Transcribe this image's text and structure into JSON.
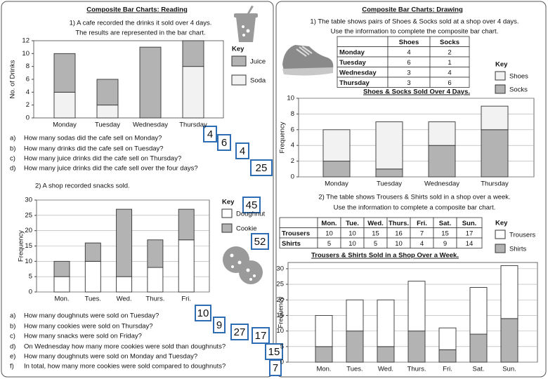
{
  "left": {
    "title": "Composite Bar Charts: Reading",
    "q1": {
      "lines": [
        "1)  A cafe recorded the drinks it sold over 4 days.",
        "The results are represented in the bar chart."
      ],
      "questions": [
        {
          "label": "a)",
          "text": "How many sodas did the cafe sell on Monday?",
          "answer": "4"
        },
        {
          "label": "b)",
          "text": "How many drinks did the cafe sell on Tuesday?",
          "answer": "6"
        },
        {
          "label": "c)",
          "text": "How many juice drinks did the cafe sell on Thursday?",
          "answer": "4"
        },
        {
          "label": "d)",
          "text": "How many juice drinks did the cafe sell over the four days?",
          "answer": "25"
        }
      ]
    },
    "q2": {
      "lines": [
        "2)  A shop recorded snacks sold."
      ],
      "totals": [
        "45",
        "52"
      ],
      "questions": [
        {
          "label": "a)",
          "text": "How many doughnuts were sold on Tuesday?",
          "answer": "10"
        },
        {
          "label": "b)",
          "text": "How many cookies were sold on Thursday?",
          "answer": "9"
        },
        {
          "label": "c)",
          "text": "How many snacks were sold on Friday?",
          "answer": "27"
        },
        {
          "label": "d)",
          "text": "On Wednesday how many more cookies were sold than doughnuts?",
          "answer": "17"
        },
        {
          "label": "e)",
          "text": "How many doughnuts were sold on Monday and Tuesday?",
          "answer": "15"
        },
        {
          "label": "f)",
          "text": "In total, how many more cookies were sold compared to doughnuts?",
          "answer": "7"
        }
      ]
    }
  },
  "right": {
    "title": "Composite Bar Charts: Drawing",
    "q1": {
      "lines": [
        "1) The table shows pairs of Shoes & Socks sold at a shop over 4 days.",
        "Use the information to complete the composite bar chart."
      ],
      "table": {
        "columns": [
          "Shoes",
          "Socks"
        ],
        "rows": [
          {
            "label": "Monday",
            "cells": [
              "4",
              "2"
            ]
          },
          {
            "label": "Tuesday",
            "cells": [
              "6",
              "1"
            ]
          },
          {
            "label": "Wednesday",
            "cells": [
              "3",
              "4"
            ]
          },
          {
            "label": "Thursday",
            "cells": [
              "3",
              "6"
            ]
          }
        ]
      }
    },
    "q2": {
      "lines": [
        "2) The table shows Trousers & Shirts sold in a shop over a week.",
        "Use the information to complete a composite bar chart."
      ],
      "table": {
        "columns": [
          "Mon.",
          "Tue.",
          "Wed.",
          "Thurs.",
          "Fri.",
          "Sat.",
          "Sun."
        ],
        "rows": [
          {
            "label": "Trousers",
            "cells": [
              "10",
              "10",
              "15",
              "16",
              "7",
              "15",
              "17"
            ]
          },
          {
            "label": "Shirts",
            "cells": [
              "5",
              "10",
              "5",
              "10",
              "4",
              "9",
              "14"
            ]
          }
        ]
      }
    }
  },
  "chart_data": [
    {
      "type": "bar",
      "stacked": true,
      "ylabel": "No. of Drinks",
      "legend_title": "Key",
      "grid": false,
      "categories": [
        "Monday",
        "Tuesday",
        "Wednesday",
        "Thursday"
      ],
      "series": [
        {
          "name": "Juice",
          "color": "#b3b3b3",
          "values": [
            6,
            4,
            11,
            4
          ]
        },
        {
          "name": "Soda",
          "color": "#f2f2f2",
          "values": [
            4,
            2,
            0,
            8
          ]
        }
      ],
      "ylim": [
        0,
        12
      ],
      "yticks": [
        0,
        2,
        4,
        6,
        8,
        10,
        12
      ]
    },
    {
      "type": "bar",
      "stacked": true,
      "ylabel": "Frequency",
      "legend_title": "Key",
      "grid": true,
      "categories": [
        "Mon.",
        "Tues.",
        "Wed.",
        "Thurs.",
        "Fri."
      ],
      "series": [
        {
          "name": "Doughnut",
          "color": "#ffffff",
          "values": [
            5,
            10,
            5,
            8,
            17
          ]
        },
        {
          "name": "Cookie",
          "color": "#b3b3b3",
          "values": [
            5,
            6,
            22,
            9,
            10
          ]
        }
      ],
      "ylim": [
        0,
        30
      ],
      "yticks": [
        0,
        5,
        10,
        15,
        20,
        25,
        30
      ]
    },
    {
      "type": "bar",
      "stacked": true,
      "title": "Shoes & Socks Sold Over 4 Days.",
      "ylabel": "Frequency",
      "legend_title": "Key",
      "grid": true,
      "categories": [
        "Monday",
        "Tuesday",
        "Wednesday",
        "Thursday"
      ],
      "series": [
        {
          "name": "Shoes",
          "color": "#f2f2f2",
          "values": [
            4,
            6,
            3,
            3
          ]
        },
        {
          "name": "Socks",
          "color": "#b3b3b3",
          "values": [
            2,
            1,
            4,
            6
          ]
        }
      ],
      "ylim": [
        0,
        10
      ],
      "yticks": [
        0,
        2,
        4,
        6,
        8,
        10
      ]
    },
    {
      "type": "bar",
      "stacked": true,
      "title": "Trousers & Shirts Sold in a Shop Over a Week.",
      "ylabel": "Frequency",
      "legend_title": "Key",
      "grid": true,
      "categories": [
        "Mon.",
        "Tues.",
        "Wed.",
        "Thurs.",
        "Fri.",
        "Sat.",
        "Sun."
      ],
      "series": [
        {
          "name": "Trousers",
          "color": "#ffffff",
          "values": [
            10,
            10,
            15,
            16,
            7,
            15,
            17
          ]
        },
        {
          "name": "Shirts",
          "color": "#b3b3b3",
          "values": [
            5,
            10,
            5,
            10,
            4,
            9,
            14
          ]
        }
      ],
      "ylim": [
        0,
        32
      ],
      "yticks": [
        0,
        5,
        10,
        15,
        20,
        25,
        30
      ]
    }
  ]
}
